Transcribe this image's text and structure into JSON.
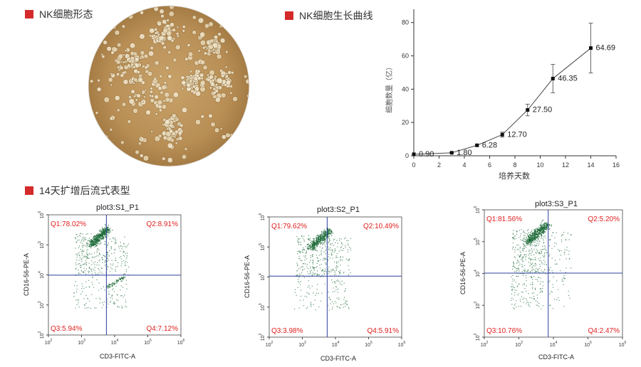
{
  "sections": {
    "morphology_title": "NK细胞形态",
    "growth_title": "NK细胞生长曲线",
    "phenotype_title": "14天扩增后流式表型"
  },
  "chart_data": [
    {
      "type": "line",
      "title": "NK细胞生长曲线",
      "xlabel": "培养天数",
      "ylabel": "细胞数量（亿）",
      "x": [
        0,
        3,
        5,
        7,
        9,
        11,
        14
      ],
      "y": [
        0.9,
        1.8,
        6.28,
        12.7,
        27.5,
        46.35,
        64.69
      ],
      "labels": [
        "0.90",
        "1.80",
        "6.28",
        "12.70",
        "27.50",
        "46.35",
        "64.69"
      ],
      "error": [
        0,
        0.3,
        0.5,
        1.5,
        3.5,
        8.5,
        15
      ],
      "xlim": [
        0,
        16
      ],
      "ylim": [
        0,
        88
      ],
      "xticks": [
        "0",
        "2",
        "4",
        "6",
        "8",
        "10",
        "12",
        "14",
        "16"
      ],
      "yticks": [
        "0",
        "20",
        "40",
        "60",
        "80"
      ]
    },
    {
      "type": "scatter",
      "title": "plot3:S1_P1",
      "xlabel": "CD3-FITC-A",
      "ylabel": "CD16-56-PE-A",
      "quadrants": {
        "q1": "Q1:78.02%",
        "q2": "Q2:8.91%",
        "q3": "Q3:5.94%",
        "q4": "Q4:7.12%"
      },
      "xtick_exps": [
        "2",
        "3",
        "4",
        "5",
        "6"
      ],
      "ytick_exps": [
        "2",
        "3",
        "4",
        "5",
        "6"
      ],
      "x_range_log": [
        2,
        6
      ],
      "y_range_log": [
        2,
        6
      ],
      "gate_x_log": 3.75,
      "gate_y_log": 3.99,
      "population_color": "#1f6b3a"
    },
    {
      "type": "scatter",
      "title": "plot3:S2_P1",
      "xlabel": "CD3-FITC-A",
      "ylabel": "CD16-56-PE-A",
      "quadrants": {
        "q1": "Q1:79.62%",
        "q2": "Q2:10.49%",
        "q3": "Q3:3.98%",
        "q4": "Q4:5.91%"
      },
      "xtick_exps": [
        "2",
        "3",
        "4",
        "5",
        "6"
      ],
      "ytick_exps": [
        "2",
        "3",
        "4",
        "5",
        "6"
      ],
      "x_range_log": [
        2,
        6
      ],
      "y_range_log": [
        2,
        6
      ],
      "gate_x_log": 3.75,
      "gate_y_log": 4.03,
      "population_color": "#1f6b3a"
    },
    {
      "type": "scatter",
      "title": "plot3:S3_P1",
      "xlabel": "CD3-FITC-A",
      "ylabel": "CD16-56-PE-A",
      "quadrants": {
        "q1": "Q1:81.56%",
        "q2": "Q2:5.20%",
        "q3": "Q3:10.76%",
        "q4": "Q4:2.47%"
      },
      "xtick_exps": [
        "2",
        "3",
        "4",
        "5",
        "6"
      ],
      "ytick_exps": [
        "2",
        "3",
        "4",
        "5",
        "6"
      ],
      "x_range_log": [
        2,
        6
      ],
      "y_range_log": [
        2,
        6
      ],
      "gate_x_log": 3.85,
      "gate_y_log": 4.01,
      "population_color": "#1f6b3a"
    }
  ],
  "colors": {
    "accent": "#d42a2a",
    "gate": "#2b3f9e",
    "quadrant_text": "#e02020",
    "dots": "#1f6b3a"
  }
}
